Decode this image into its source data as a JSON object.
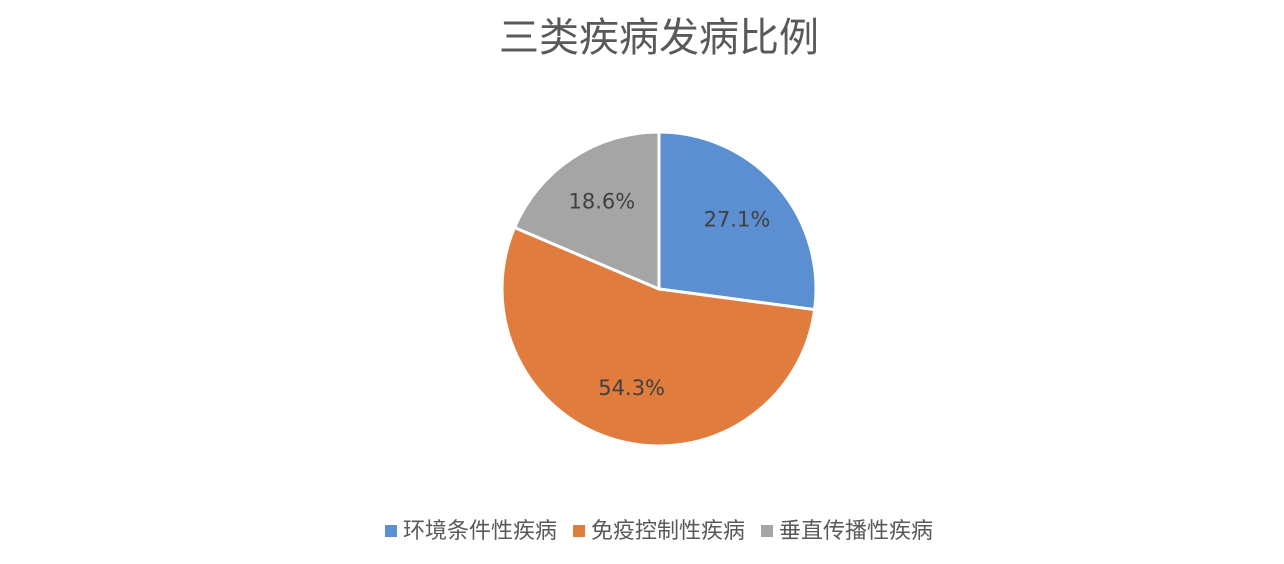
{
  "chart_data": {
    "type": "pie",
    "title": "三类疾病发病比例",
    "categories": [
      "环境条件性疾病",
      "免疫控制性疾病",
      "垂直传播性疾病"
    ],
    "values": [
      27.1,
      54.3,
      18.6
    ],
    "value_labels": [
      "27.1%",
      "54.3%",
      "18.6%"
    ],
    "colors": [
      "#5b8fd2",
      "#e07c3e",
      "#a5a5a5"
    ],
    "legend": "bottom"
  }
}
